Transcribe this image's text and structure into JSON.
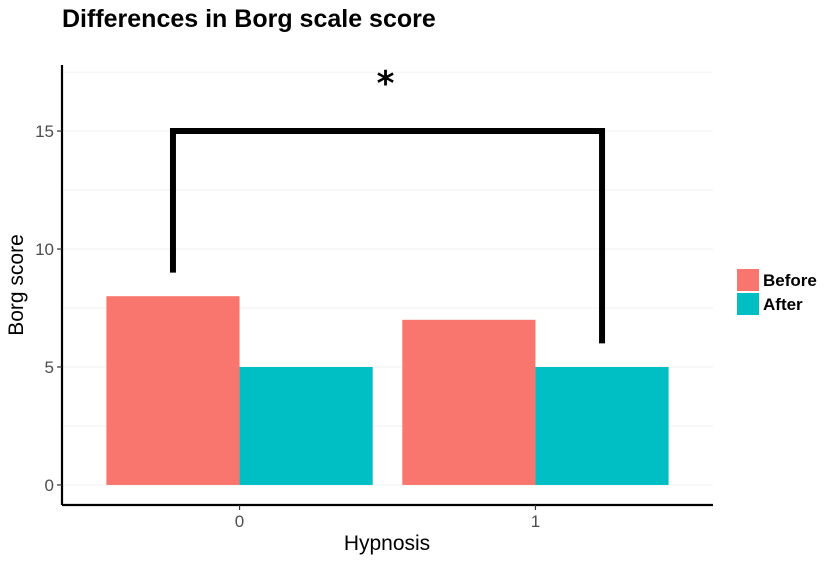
{
  "chart_data": {
    "type": "bar",
    "title": "Differences in Borg scale score",
    "xlabel": "Hypnosis",
    "ylabel": "Borg score",
    "categories": [
      "0",
      "1"
    ],
    "series": [
      {
        "name": "Before",
        "values": [
          8,
          7
        ],
        "color": "#F8766D"
      },
      {
        "name": "After",
        "values": [
          5,
          5
        ],
        "color": "#00BFC4"
      }
    ],
    "ylim": [
      -0.85,
      17.8
    ],
    "yticks": [
      0,
      5,
      10,
      15
    ],
    "grid": true,
    "legend": "right",
    "annotation": {
      "text": "*",
      "bracket_top": 15,
      "left_leg_end": 9,
      "right_leg_end": 6
    }
  }
}
